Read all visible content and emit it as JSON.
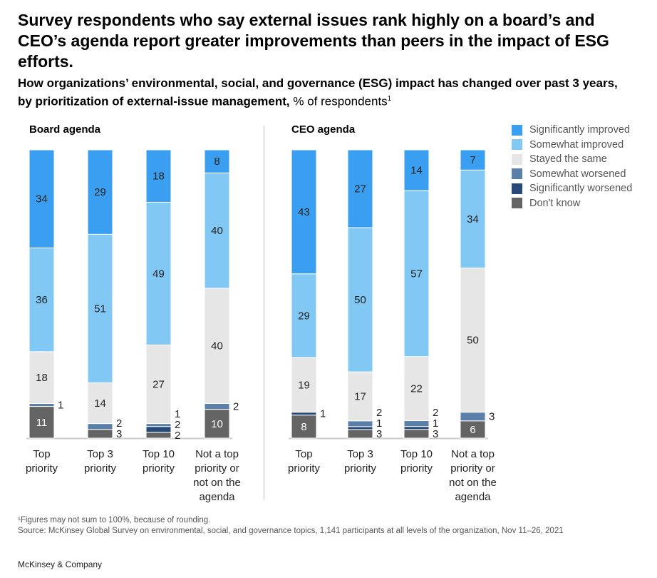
{
  "title": "Survey respondents who say external issues rank highly on a board’s and CEO’s agenda report greater improvements than peers in the impact of ESG efforts.",
  "subtitle_bold": "How organizations’ environmental, social, and governance (ESG) impact has changed over past 3 years, by prioritization of external-issue management,",
  "subtitle_unit": " % of respondents",
  "subtitle_sup": "1",
  "footnote": "¹Figures may not sum to 100%, because of rounding.",
  "source": "Source: McKinsey Global Survey on environmental, social, and governance topics, 1,141 participants at all levels of the organization, Nov 11–26, 2021",
  "brand": "McKinsey & Company",
  "colors": {
    "Significantly improved": "#3a9ff0",
    "Somewhat improved": "#82c8f4",
    "Stayed the same": "#e6e6e6",
    "Somewhat worsened": "#5a80aa",
    "Significantly worsened": "#284a78",
    "Don't know": "#646464"
  },
  "chart_data": [
    {
      "type": "bar",
      "stacked": true,
      "title": "Board agenda",
      "categories": [
        "Top priority",
        "Top 3 priority",
        "Top 10 priority",
        "Not a top priority or not on the agenda"
      ],
      "series": [
        {
          "name": "Significantly improved",
          "values": [
            34,
            29,
            18,
            8
          ]
        },
        {
          "name": "Somewhat improved",
          "values": [
            36,
            51,
            49,
            40
          ]
        },
        {
          "name": "Stayed the same",
          "values": [
            18,
            14,
            27,
            40
          ]
        },
        {
          "name": "Somewhat worsened",
          "values": [
            1,
            2,
            1,
            2
          ]
        },
        {
          "name": "Significantly worsened",
          "values": [
            0,
            0,
            2,
            0
          ]
        },
        {
          "name": "Don't know",
          "values": [
            11,
            3,
            2,
            10
          ]
        }
      ],
      "legend": "right"
    },
    {
      "type": "bar",
      "stacked": true,
      "title": "CEO agenda",
      "categories": [
        "Top priority",
        "Top 3 priority",
        "Top 10 priority",
        "Not a top priority or not on the agenda"
      ],
      "series": [
        {
          "name": "Significantly improved",
          "values": [
            43,
            27,
            14,
            7
          ]
        },
        {
          "name": "Somewhat improved",
          "values": [
            29,
            50,
            57,
            34
          ]
        },
        {
          "name": "Stayed the same",
          "values": [
            19,
            17,
            22,
            50
          ]
        },
        {
          "name": "Somewhat worsened",
          "values": [
            0,
            2,
            2,
            3
          ]
        },
        {
          "name": "Significantly worsened",
          "values": [
            1,
            1,
            1,
            0
          ]
        },
        {
          "name": "Don't know",
          "values": [
            8,
            3,
            3,
            6
          ]
        }
      ],
      "legend": "right"
    }
  ]
}
